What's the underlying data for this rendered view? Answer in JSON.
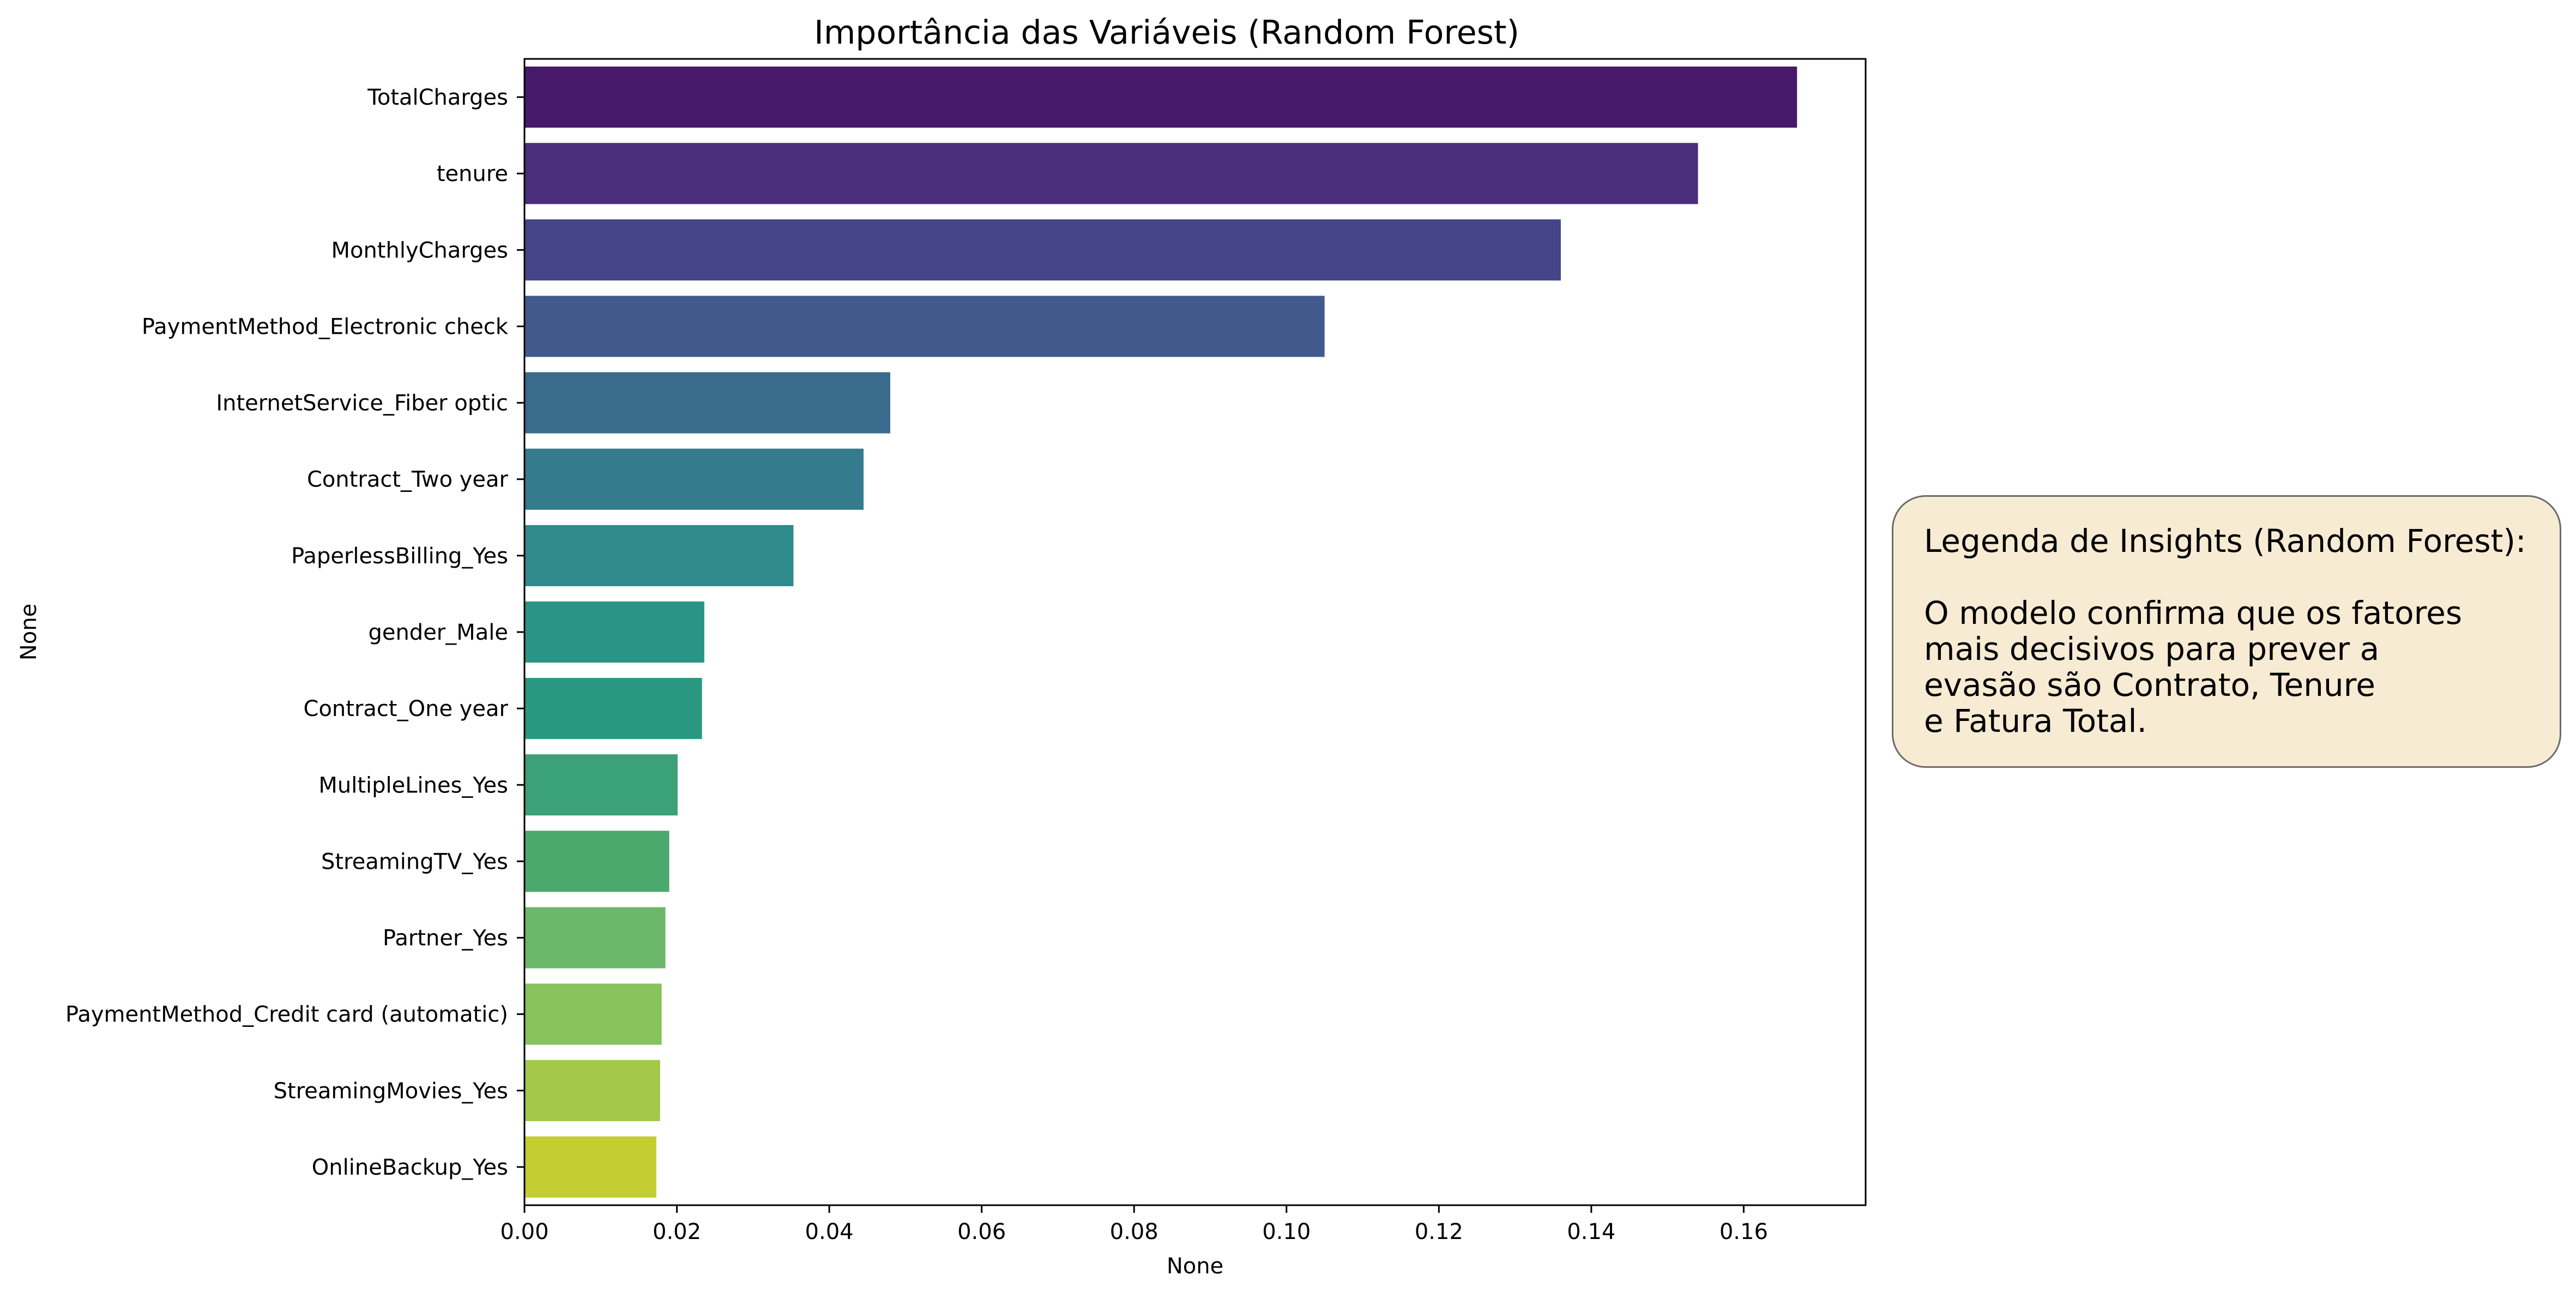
{
  "chart_data": {
    "type": "bar",
    "orientation": "horizontal",
    "title": "Importância das Variáveis (Random Forest)",
    "xlabel": "None",
    "ylabel": "None",
    "xlim": [
      0,
      0.176
    ],
    "xticks": [
      "0.00",
      "0.02",
      "0.04",
      "0.06",
      "0.08",
      "0.10",
      "0.12",
      "0.14",
      "0.16"
    ],
    "xtick_values": [
      0,
      0.02,
      0.04,
      0.06,
      0.08,
      0.1,
      0.12,
      0.14,
      0.16
    ],
    "grid": false,
    "legend": false,
    "palette": "viridis",
    "categories": [
      "TotalCharges",
      "tenure",
      "MonthlyCharges",
      "PaymentMethod_Electronic check",
      "InternetService_Fiber optic",
      "Contract_Two year",
      "PaperlessBilling_Yes",
      "gender_Male",
      "Contract_One year",
      "MultipleLines_Yes",
      "StreamingTV_Yes",
      "Partner_Yes",
      "PaymentMethod_Credit card (automatic)",
      "StreamingMovies_Yes",
      "OnlineBackup_Yes"
    ],
    "values": [
      0.167,
      0.154,
      0.136,
      0.105,
      0.048,
      0.0445,
      0.0353,
      0.0236,
      0.0233,
      0.0201,
      0.019,
      0.0185,
      0.018,
      0.0178,
      0.0173
    ],
    "colors": [
      "#48196b",
      "#4a2e7c",
      "#46458a",
      "#405a8c",
      "#3a6a8c",
      "#347b8d",
      "#2f8a8c",
      "#2a9486",
      "#2a9880",
      "#3ba178",
      "#4ba96d",
      "#6cb86a",
      "#88c25a",
      "#a3c84a",
      "#c4cd31"
    ]
  },
  "annotation": {
    "heading": "Legenda de Insights (Random Forest):",
    "lines": [
      "O modelo confirma que os fatores",
      "mais decisivos para prever a",
      "evasão são Contrato, Tenure",
      "e Fatura Total."
    ]
  }
}
